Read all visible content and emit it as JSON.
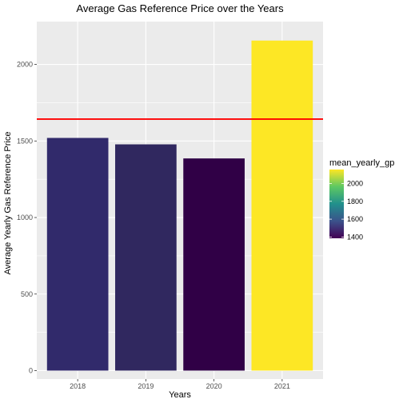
{
  "chart_data": {
    "type": "bar",
    "title": "Average Gas Reference Price over the Years",
    "xlabel": "Years",
    "ylabel": "Average Yearly Gas Reference Price",
    "categories": [
      "2018",
      "2019",
      "2020",
      "2021"
    ],
    "values": [
      1520,
      1478,
      1386,
      2156
    ],
    "ylim": [
      -55,
      2280
    ],
    "yticks": [
      0,
      500,
      1000,
      1500,
      2000
    ],
    "reference_line": {
      "value": 1643,
      "color": "#ff0000"
    },
    "grid": true,
    "panel_background": "#ebebeb",
    "legend": {
      "title": "mean_yearly_gp",
      "placement": "right",
      "ticks": [
        1400,
        1600,
        1800,
        2000
      ],
      "range": [
        1386,
        2156
      ],
      "colors": [
        "#440154",
        "#3b528b",
        "#21908c",
        "#5dc863",
        "#fde725"
      ]
    },
    "bar_colors": [
      "#312a6b",
      "#30285f",
      "#300046",
      "#fde725"
    ]
  }
}
